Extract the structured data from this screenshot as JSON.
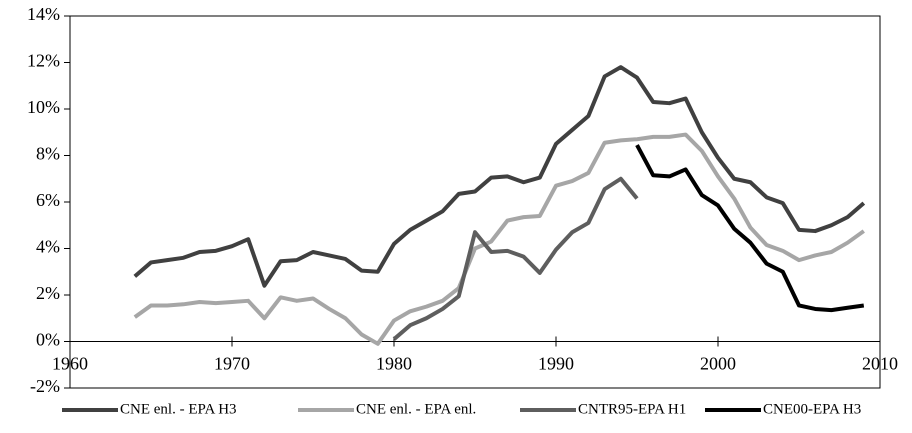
{
  "chart_data": {
    "type": "line",
    "x": [
      1964,
      1965,
      1966,
      1967,
      1968,
      1969,
      1970,
      1971,
      1972,
      1973,
      1974,
      1975,
      1976,
      1977,
      1978,
      1979,
      1980,
      1981,
      1982,
      1983,
      1984,
      1985,
      1986,
      1987,
      1988,
      1989,
      1990,
      1991,
      1992,
      1993,
      1994,
      1995,
      1996,
      1997,
      1998,
      1999,
      2000,
      2001,
      2002,
      2003,
      2004,
      2005,
      2006,
      2007,
      2008,
      2009
    ],
    "series": [
      {
        "name": "CNE enl. - EPA H3",
        "color": "#404040",
        "values": [
          2.8,
          3.4,
          3.5,
          3.6,
          3.85,
          3.9,
          4.1,
          4.4,
          2.4,
          3.45,
          3.5,
          3.85,
          3.7,
          3.55,
          3.05,
          3.0,
          4.2,
          4.8,
          5.2,
          5.6,
          6.35,
          6.45,
          7.05,
          7.1,
          6.85,
          7.05,
          8.5,
          9.1,
          9.7,
          11.4,
          11.8,
          11.35,
          10.3,
          10.25,
          10.45,
          9.0,
          7.9,
          7.0,
          6.85,
          6.2,
          5.95,
          4.8,
          4.75,
          5.0,
          5.35,
          5.95
        ]
      },
      {
        "name": "CNE enl. - EPA enl.",
        "color": "#a6a6a6",
        "values": [
          1.05,
          1.55,
          1.55,
          1.6,
          1.7,
          1.65,
          1.7,
          1.75,
          1.0,
          1.9,
          1.75,
          1.85,
          1.4,
          1.0,
          0.3,
          -0.1,
          0.9,
          1.3,
          1.5,
          1.75,
          2.3,
          4.0,
          4.3,
          5.2,
          5.35,
          5.4,
          6.7,
          6.9,
          7.25,
          8.55,
          8.65,
          8.7,
          8.8,
          8.8,
          8.9,
          8.2,
          7.1,
          6.15,
          4.9,
          4.15,
          3.9,
          3.5,
          3.7,
          3.85,
          4.25,
          4.75
        ]
      },
      {
        "name": "CNTR95-EPA H1",
        "color": "#5e5e5e",
        "values": [
          null,
          null,
          null,
          null,
          null,
          null,
          null,
          null,
          null,
          null,
          null,
          null,
          null,
          null,
          null,
          null,
          0.1,
          0.7,
          1.0,
          1.4,
          1.95,
          4.7,
          3.85,
          3.9,
          3.65,
          2.95,
          3.95,
          4.7,
          5.1,
          6.55,
          7.0,
          6.15,
          null,
          null,
          null,
          null,
          null,
          null,
          null,
          null,
          null,
          null,
          null,
          null,
          null,
          null
        ]
      },
      {
        "name": "CNE00-EPA H3",
        "color": "#000000",
        "values": [
          null,
          null,
          null,
          null,
          null,
          null,
          null,
          null,
          null,
          null,
          null,
          null,
          null,
          null,
          null,
          null,
          null,
          null,
          null,
          null,
          null,
          null,
          null,
          null,
          null,
          null,
          null,
          null,
          null,
          null,
          null,
          8.45,
          7.15,
          7.1,
          7.4,
          6.3,
          5.85,
          4.85,
          4.25,
          3.35,
          3.0,
          1.55,
          1.4,
          1.35,
          1.45,
          1.55
        ]
      }
    ],
    "xlim": [
      1960,
      2010
    ],
    "xticks": [
      1960,
      1970,
      1980,
      1990,
      2000,
      2010
    ],
    "ylim": [
      -2,
      14
    ],
    "yticks": [
      {
        "value": -2,
        "label": "-2%"
      },
      {
        "value": 0,
        "label": "0%"
      },
      {
        "value": 2,
        "label": "2%"
      },
      {
        "value": 4,
        "label": "4%"
      },
      {
        "value": 6,
        "label": "6%"
      },
      {
        "value": 8,
        "label": "8%"
      },
      {
        "value": 10,
        "label": "10%"
      },
      {
        "value": 12,
        "label": "12%"
      },
      {
        "value": 14,
        "label": "14%"
      }
    ],
    "grid": false,
    "legend": "bottom"
  }
}
